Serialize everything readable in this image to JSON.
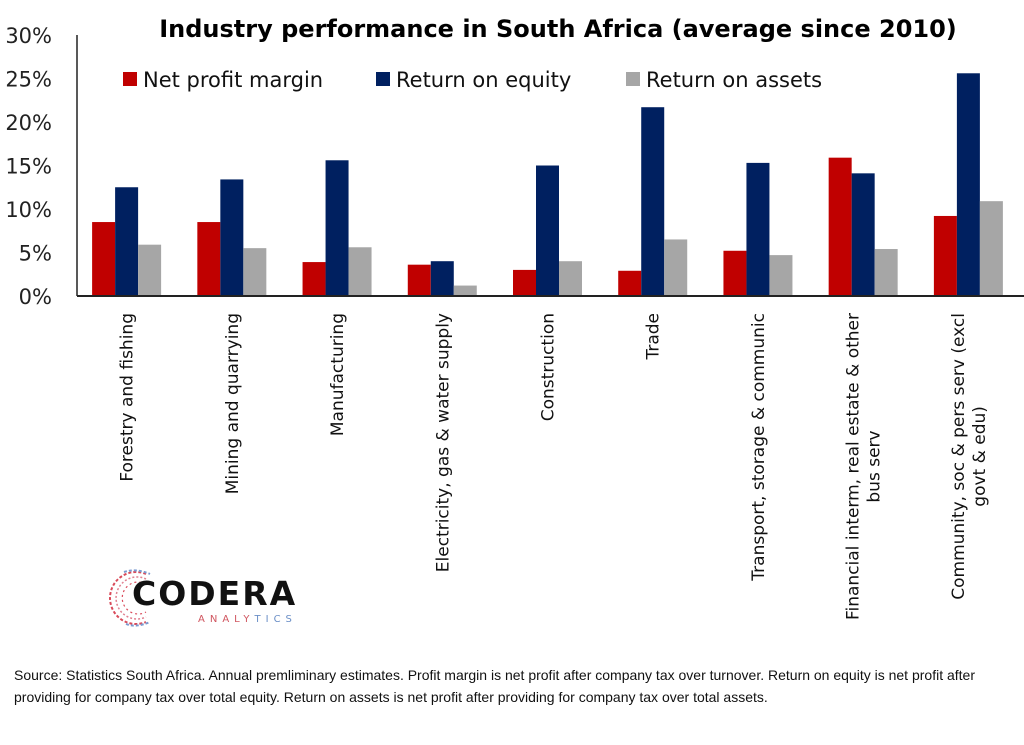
{
  "chart_data": {
    "type": "bar",
    "title": "Industry performance in South Africa (average since 2010)",
    "xlabel": "",
    "ylabel": "",
    "ylim": [
      0,
      30
    ],
    "yticks": [
      "0%",
      "5%",
      "10%",
      "15%",
      "20%",
      "25%",
      "30%"
    ],
    "ytick_values": [
      0,
      5,
      10,
      15,
      20,
      25,
      30
    ],
    "grid": false,
    "legend_position": "top",
    "categories": [
      "Forestry and fishing",
      "Mining and quarrying",
      "Manufacturing",
      "Electricity, gas & water supply",
      "Construction",
      "Trade",
      "Transport, storage & communic",
      "Financial interm, real estate & other bus serv",
      "Community, soc & pers serv  (excl govt & edu)"
    ],
    "category_lines": [
      [
        "Forestry and fishing"
      ],
      [
        "Mining and quarrying"
      ],
      [
        "Manufacturing"
      ],
      [
        "Electricity, gas & water supply"
      ],
      [
        "Construction"
      ],
      [
        "Trade"
      ],
      [
        "Transport, storage & communic"
      ],
      [
        "Financial interm, real estate & other",
        "bus serv"
      ],
      [
        "Community, soc & pers serv  (excl",
        "govt & edu)"
      ]
    ],
    "series": [
      {
        "name": "Net profit margin",
        "color": "#c00000",
        "values": [
          8.5,
          8.5,
          3.9,
          3.6,
          3.0,
          2.9,
          5.2,
          15.9,
          9.2
        ]
      },
      {
        "name": "Return on equity",
        "color": "#002060",
        "values": [
          12.5,
          13.4,
          15.6,
          4.0,
          15.0,
          21.7,
          15.3,
          14.1,
          25.6
        ]
      },
      {
        "name": "Return on assets",
        "color": "#a6a6a6",
        "values": [
          5.9,
          5.5,
          5.6,
          1.2,
          4.0,
          6.5,
          4.7,
          5.4,
          10.9
        ]
      }
    ]
  },
  "logo": {
    "name": "CODERA",
    "tagline_red": "ANALY",
    "tagline_blue": "TICS"
  },
  "footnote": "Source: Statistics South Africa. Annual premliminary estimates. Profit margin is net profit after company tax over turnover. Return on equity is net profit after providing for company tax over total equity. Return on assets is net profit after providing for company tax over total assets."
}
